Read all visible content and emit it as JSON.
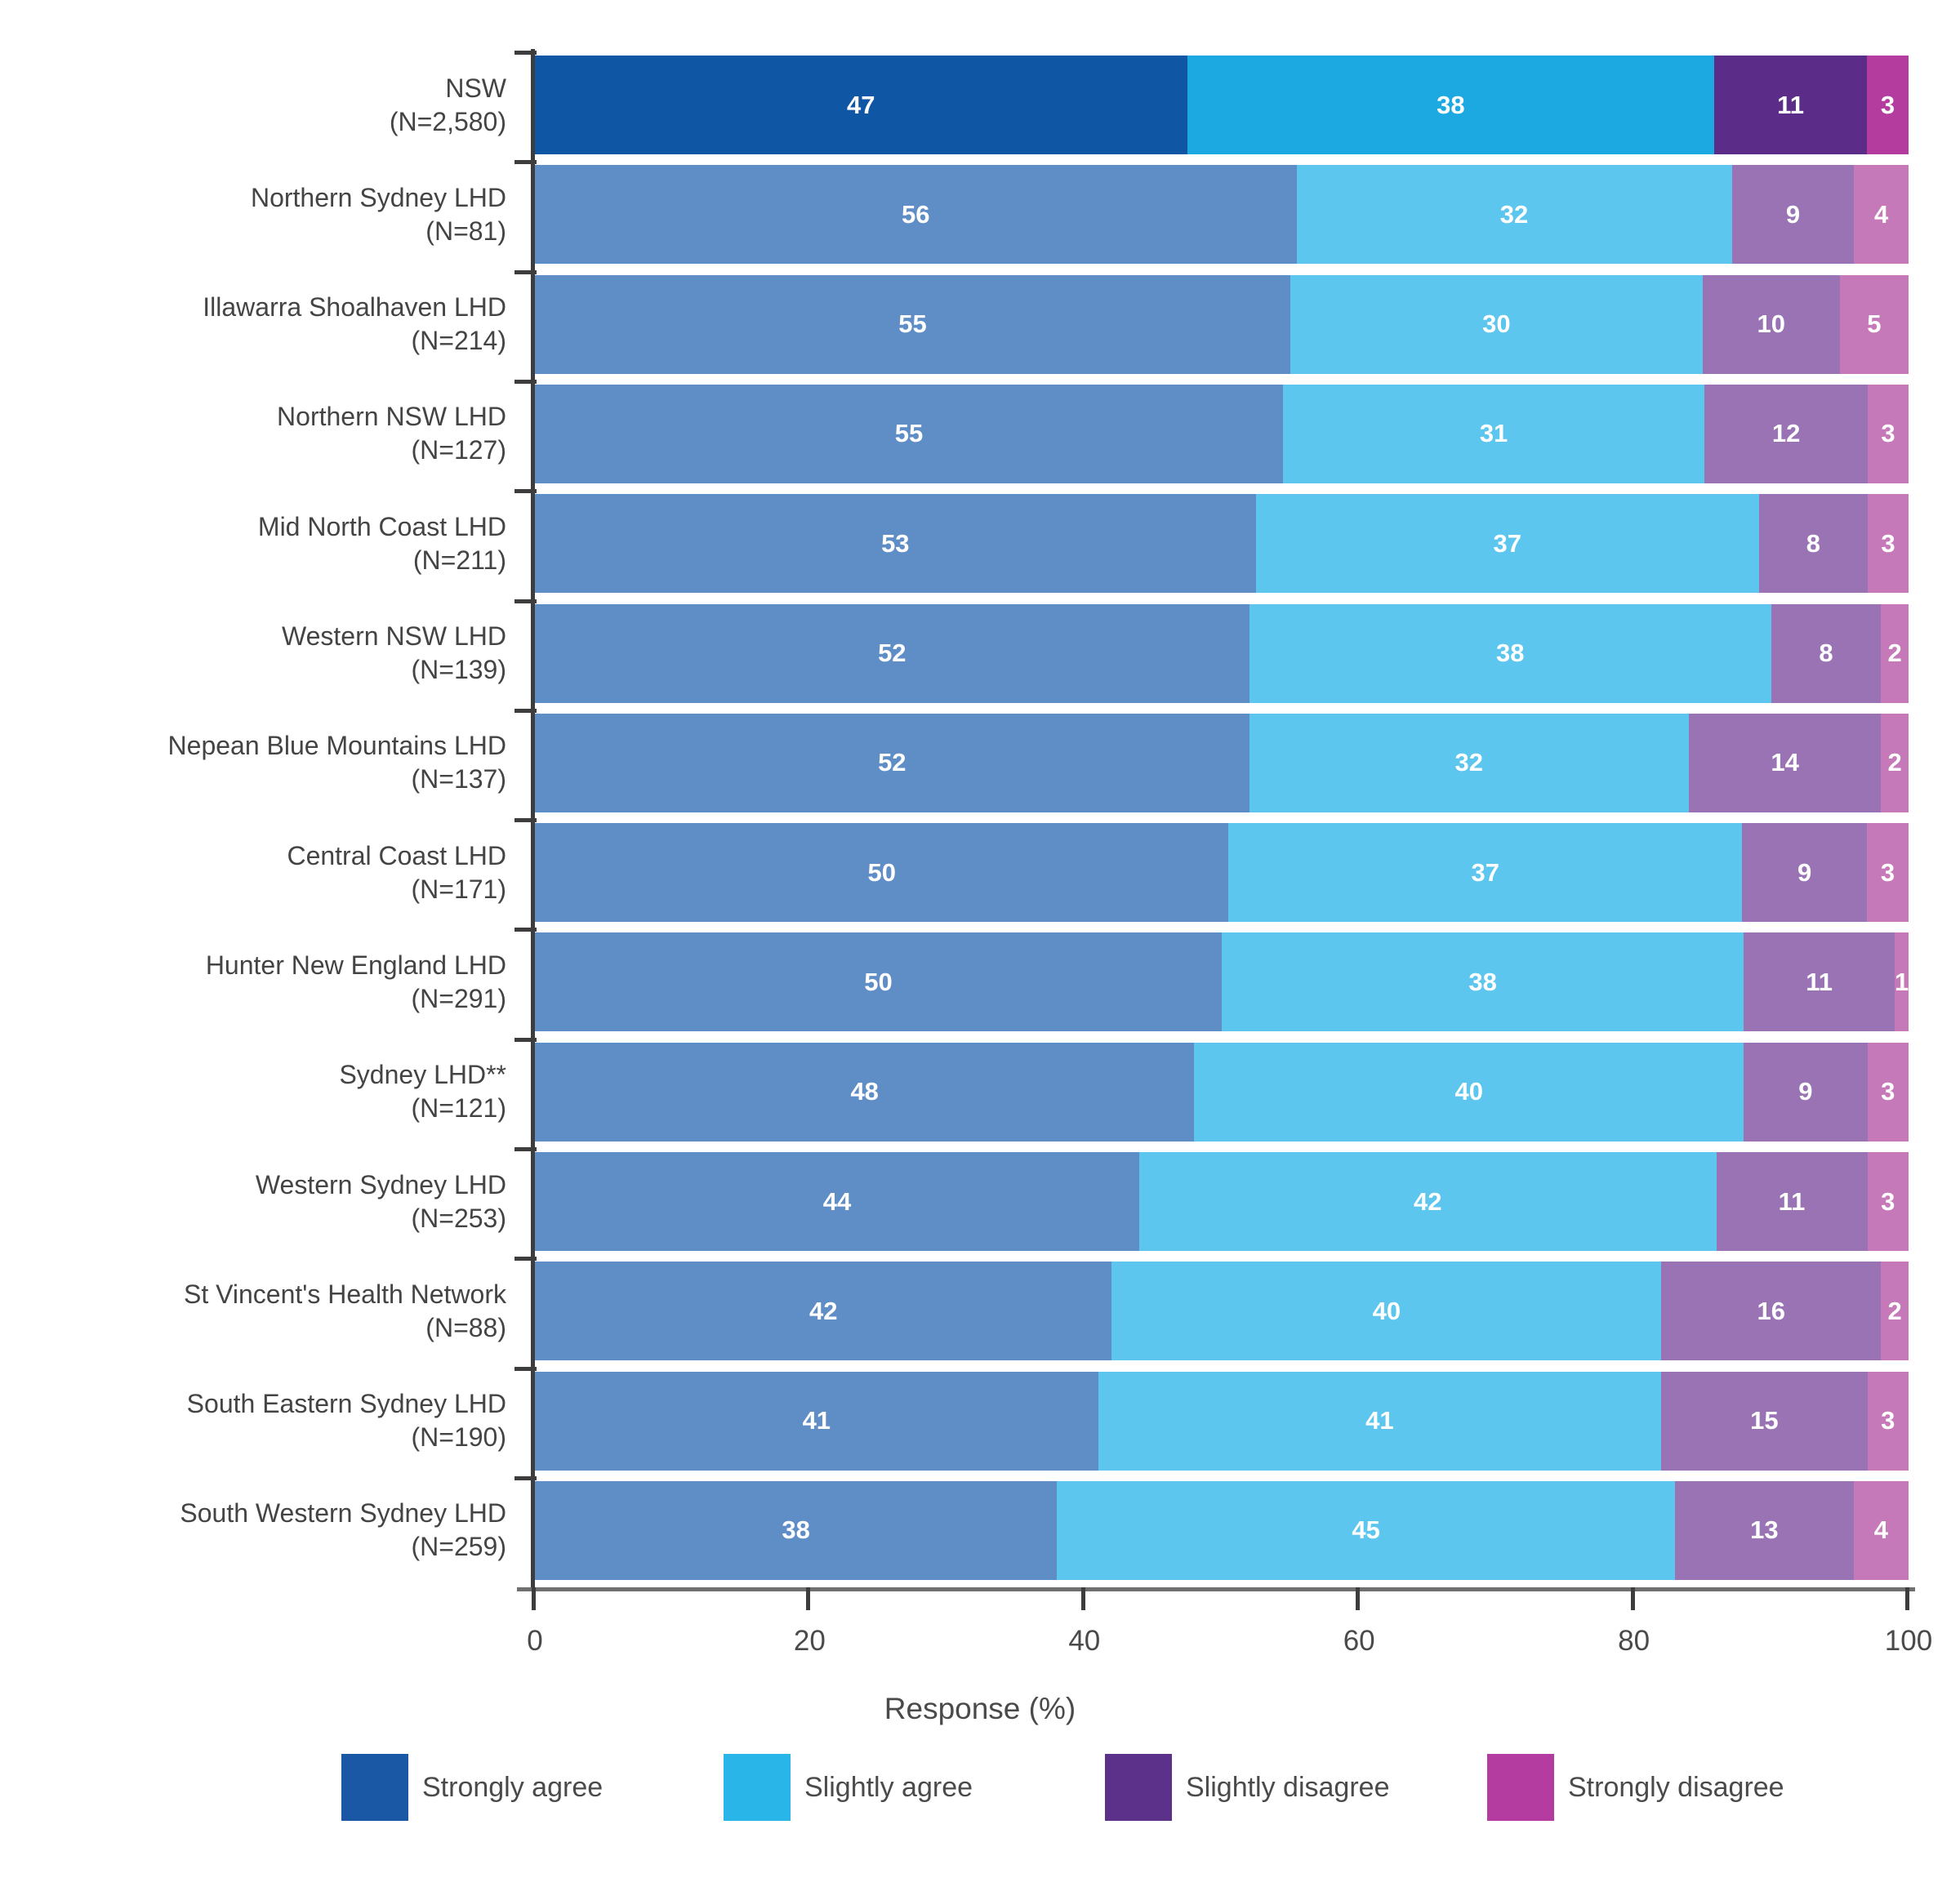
{
  "chart_data": {
    "type": "bar",
    "stacked": true,
    "orientation": "horizontal",
    "title": "",
    "xlabel": "Response (%)",
    "ylabel": "",
    "xlim": [
      0,
      100
    ],
    "x_ticks": [
      0,
      20,
      40,
      60,
      80,
      100
    ],
    "grid": false,
    "legend_position": "bottom",
    "series_names": [
      "Strongly agree",
      "Slightly agree",
      "Slightly disagree",
      "Strongly disagree"
    ],
    "colors_highlight_row": [
      "#0f56a5",
      "#1ca9e2",
      "#5b2d88",
      "#b43c9f"
    ],
    "colors_normal_rows": [
      "#5f8ec7",
      "#5cc6ee",
      "#9973b4",
      "#c679b8"
    ],
    "value_label_color": "#ffffff",
    "rows": [
      {
        "label": "NSW",
        "n_label": "(N=2,580)",
        "values": [
          47,
          38,
          11,
          3
        ],
        "highlight": true
      },
      {
        "label": "Northern Sydney LHD",
        "n_label": "(N=81)",
        "values": [
          56,
          32,
          9,
          4
        ],
        "highlight": false
      },
      {
        "label": "Illawarra Shoalhaven LHD",
        "n_label": "(N=214)",
        "values": [
          55,
          30,
          10,
          5
        ],
        "highlight": false
      },
      {
        "label": "Northern NSW LHD",
        "n_label": "(N=127)",
        "values": [
          55,
          31,
          12,
          3
        ],
        "highlight": false
      },
      {
        "label": "Mid North Coast LHD",
        "n_label": "(N=211)",
        "values": [
          53,
          37,
          8,
          3
        ],
        "highlight": false
      },
      {
        "label": "Western NSW LHD",
        "n_label": "(N=139)",
        "values": [
          52,
          38,
          8,
          2
        ],
        "highlight": false
      },
      {
        "label": "Nepean Blue Mountains LHD",
        "n_label": "(N=137)",
        "values": [
          52,
          32,
          14,
          2
        ],
        "highlight": false
      },
      {
        "label": "Central Coast LHD",
        "n_label": "(N=171)",
        "values": [
          50,
          37,
          9,
          3
        ],
        "highlight": false
      },
      {
        "label": "Hunter New England LHD",
        "n_label": "(N=291)",
        "values": [
          50,
          38,
          11,
          1
        ],
        "highlight": false
      },
      {
        "label": "Sydney LHD**",
        "n_label": "(N=121)",
        "values": [
          48,
          40,
          9,
          3
        ],
        "highlight": false
      },
      {
        "label": "Western Sydney LHD",
        "n_label": "(N=253)",
        "values": [
          44,
          42,
          11,
          3
        ],
        "highlight": false
      },
      {
        "label": "St Vincent's Health Network",
        "n_label": "(N=88)",
        "values": [
          42,
          40,
          16,
          2
        ],
        "highlight": false
      },
      {
        "label": "South Eastern Sydney LHD",
        "n_label": "(N=190)",
        "values": [
          41,
          41,
          15,
          3
        ],
        "highlight": false
      },
      {
        "label": "South Western Sydney LHD",
        "n_label": "(N=259)",
        "values": [
          38,
          45,
          13,
          4
        ],
        "highlight": false
      }
    ],
    "legend": [
      {
        "label": "Strongly agree",
        "color": "#1a57a5"
      },
      {
        "label": "Slightly agree",
        "color": "#29b5e8"
      },
      {
        "label": "Slightly disagree",
        "color": "#5c3189"
      },
      {
        "label": "Strongly disagree",
        "color": "#b43ba0"
      }
    ]
  }
}
